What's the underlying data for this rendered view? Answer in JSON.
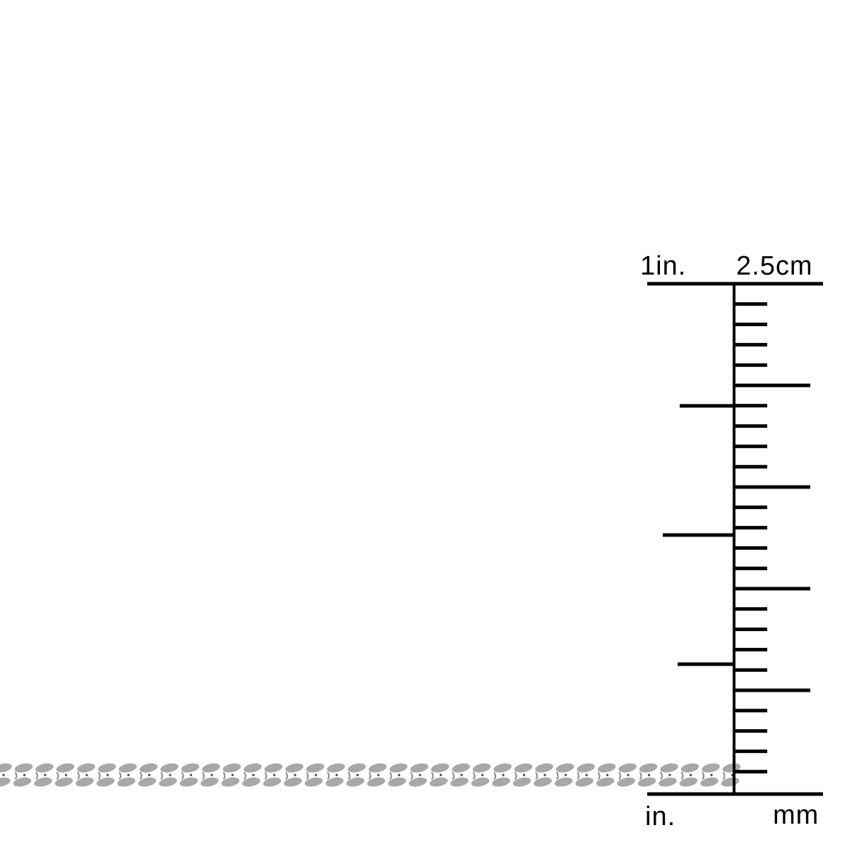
{
  "ruler": {
    "top_left_label": "1in.",
    "top_right_label": "2.5cm",
    "bottom_left_label": "in.",
    "bottom_right_label": "mm",
    "color": "#000000"
  },
  "chain": {
    "style": "curb chain",
    "color": "#a8a8a8"
  }
}
